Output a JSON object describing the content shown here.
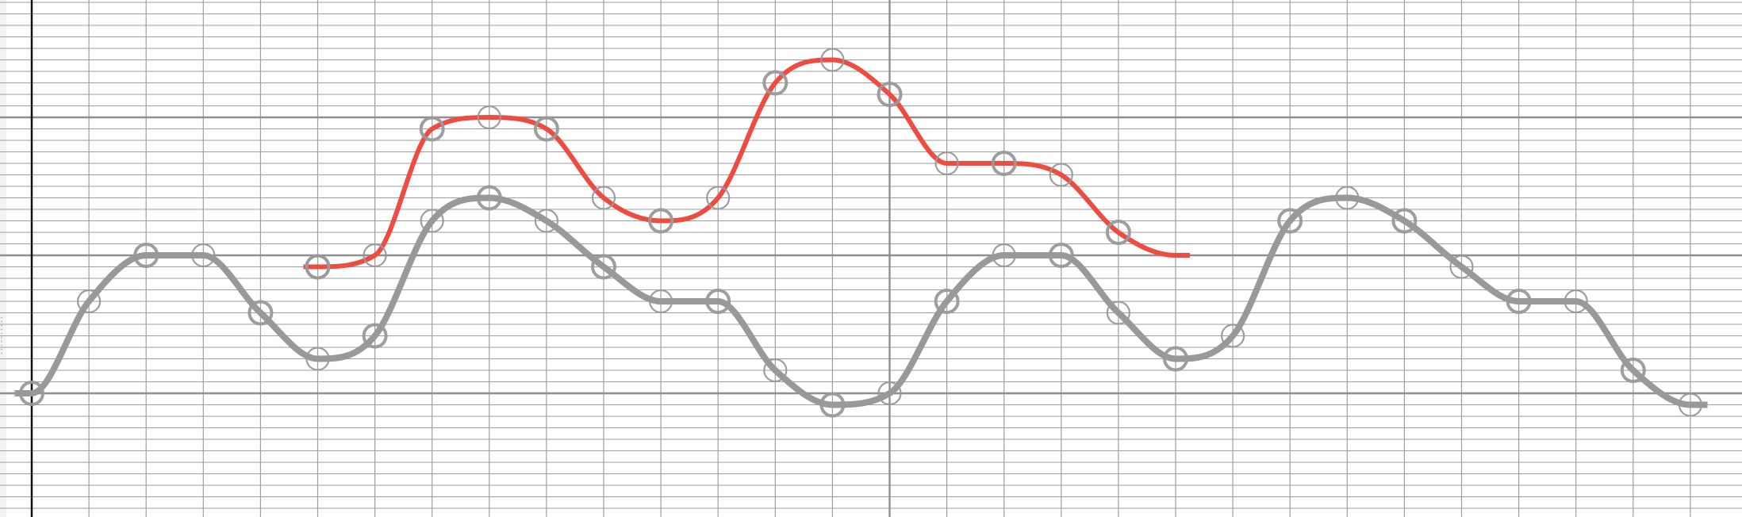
{
  "chart_data": {
    "type": "line",
    "title": "",
    "xlabel": "",
    "ylabel": "",
    "xlim": [
      -0.5,
      29.5
    ],
    "ylim": [
      -2.25,
      2.25
    ],
    "grid": true,
    "major_x": [
      15
    ],
    "major_y": [
      -1.2,
      0,
      1.2
    ],
    "axis_x": 0,
    "colors": {
      "grid_minor": "#9e9e9e",
      "grid_major": "#8f8f8f",
      "axis": "#111111",
      "series": [
        "#999999",
        "#ee4b41"
      ],
      "marker": "#999999"
    },
    "series": [
      {
        "name": "gray",
        "color": "#999999",
        "x": [
          0,
          1,
          2,
          3,
          4,
          5,
          6,
          7,
          8,
          9,
          10,
          11,
          12,
          13,
          14,
          15,
          16,
          17,
          18,
          19,
          20,
          21,
          22,
          23,
          24,
          25,
          26,
          27,
          28,
          29
        ],
        "y": [
          -1.2,
          -0.4,
          0,
          0,
          -0.5,
          -0.9,
          -0.7,
          0.3,
          0.5,
          0.3,
          -0.1,
          -0.4,
          -0.4,
          -1.0,
          -1.3,
          -1.2,
          -0.4,
          0,
          0,
          -0.5,
          -0.9,
          -0.7,
          0.3,
          0.5,
          0.3,
          -0.1,
          -0.4,
          -0.4,
          -1.0,
          -1.3
        ]
      },
      {
        "name": "red",
        "color": "#ee4b41",
        "x": [
          5,
          6,
          7,
          8,
          9,
          10,
          11,
          12,
          13,
          14,
          15,
          16,
          17,
          18,
          19,
          20
        ],
        "y": [
          -0.1,
          0,
          1.1,
          1.2,
          1.1,
          0.5,
          0.3,
          0.5,
          1.5,
          1.7,
          1.4,
          0.8,
          0.8,
          0.7,
          0.2,
          0
        ]
      }
    ]
  }
}
